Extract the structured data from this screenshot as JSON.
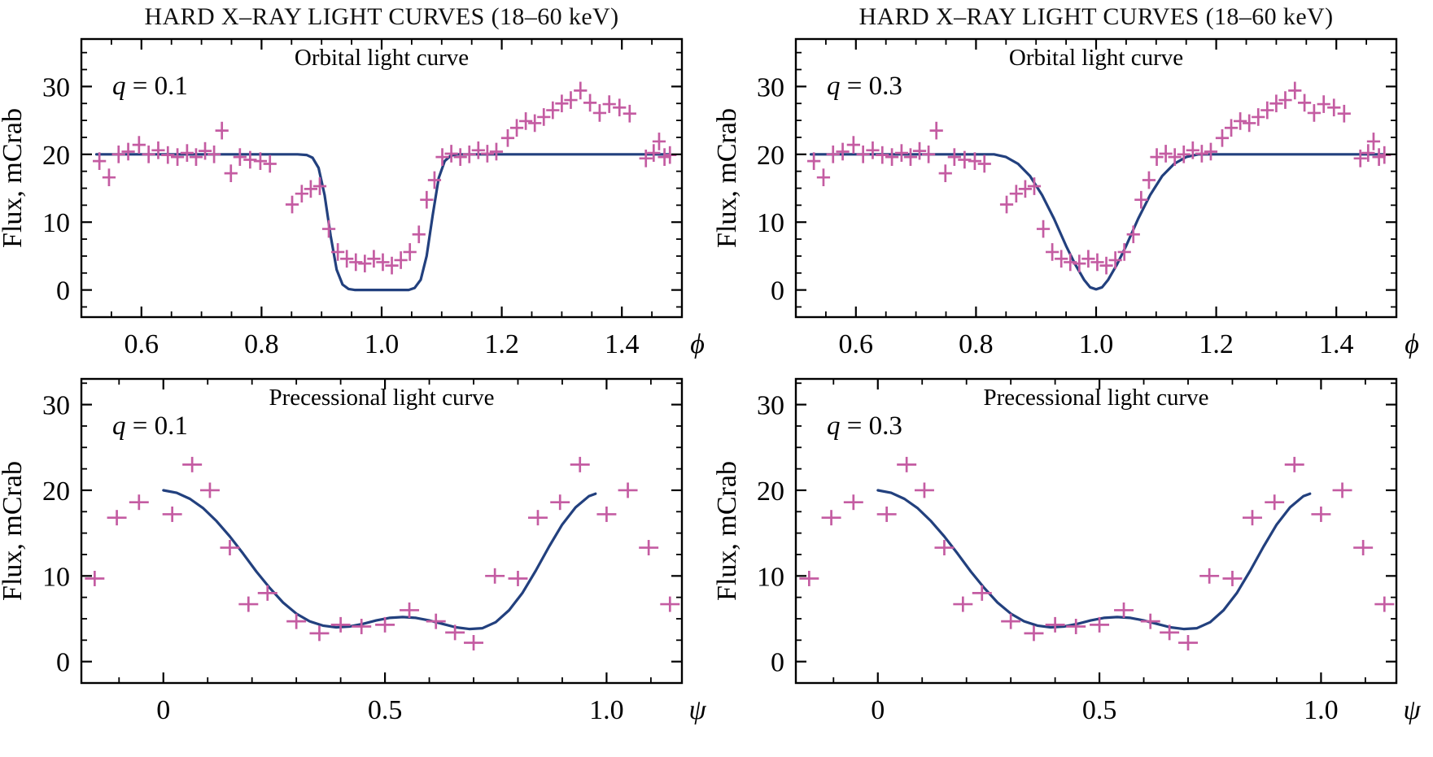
{
  "columns": [
    {
      "title": "HARD X–RAY LIGHT CURVES (18–60 keV)"
    },
    {
      "title": "HARD X–RAY LIGHT CURVES (18–60 keV)"
    }
  ],
  "colors": {
    "data": "#c45ca2",
    "model": "#22407e",
    "q_label": "#1f54a6",
    "axis": "#000000",
    "background": "#ffffff"
  },
  "chart_data": {
    "type": "scatter+line",
    "shared_series": {
      "orbital_points": [
        [
          0.53,
          19.0
        ],
        [
          0.546,
          16.6
        ],
        [
          0.562,
          20.0
        ],
        [
          0.578,
          20.4
        ],
        [
          0.596,
          21.4
        ],
        [
          0.612,
          20.0
        ],
        [
          0.628,
          20.6
        ],
        [
          0.644,
          19.9
        ],
        [
          0.66,
          19.6
        ],
        [
          0.676,
          20.2
        ],
        [
          0.691,
          19.6
        ],
        [
          0.706,
          20.5
        ],
        [
          0.721,
          20.0
        ],
        [
          0.734,
          23.5
        ],
        [
          0.749,
          17.2
        ],
        [
          0.764,
          19.6
        ],
        [
          0.781,
          19.2
        ],
        [
          0.798,
          19.0
        ],
        [
          0.814,
          18.6
        ],
        [
          0.851,
          12.6
        ],
        [
          0.867,
          14.2
        ],
        [
          0.882,
          14.9
        ],
        [
          0.897,
          15.3
        ],
        [
          0.912,
          9.0
        ],
        [
          0.927,
          5.6
        ],
        [
          0.942,
          4.6
        ],
        [
          0.957,
          4.1
        ],
        [
          0.972,
          3.9
        ],
        [
          0.987,
          4.6
        ],
        [
          1.002,
          4.1
        ],
        [
          1.017,
          3.6
        ],
        [
          1.032,
          4.4
        ],
        [
          1.047,
          5.6
        ],
        [
          1.062,
          8.2
        ],
        [
          1.075,
          13.3
        ],
        [
          1.088,
          16.2
        ],
        [
          1.101,
          19.6
        ],
        [
          1.116,
          20.1
        ],
        [
          1.131,
          19.6
        ],
        [
          1.146,
          20.0
        ],
        [
          1.161,
          20.6
        ],
        [
          1.176,
          20.1
        ],
        [
          1.191,
          20.4
        ],
        [
          1.21,
          22.4
        ],
        [
          1.225,
          23.9
        ],
        [
          1.24,
          24.9
        ],
        [
          1.255,
          24.6
        ],
        [
          1.27,
          25.5
        ],
        [
          1.285,
          26.5
        ],
        [
          1.3,
          27.5
        ],
        [
          1.315,
          28.0
        ],
        [
          1.331,
          29.4
        ],
        [
          1.347,
          27.6
        ],
        [
          1.363,
          26.1
        ],
        [
          1.379,
          27.4
        ],
        [
          1.396,
          26.9
        ],
        [
          1.413,
          26.0
        ],
        [
          1.44,
          19.4
        ],
        [
          1.453,
          20.2
        ],
        [
          1.462,
          21.9
        ],
        [
          1.471,
          19.6
        ],
        [
          1.48,
          19.9
        ]
      ],
      "precessional_points": [
        [
          -0.155,
          9.7
        ],
        [
          -0.105,
          16.8
        ],
        [
          -0.055,
          18.6
        ],
        [
          0.02,
          17.2
        ],
        [
          0.065,
          23.0
        ],
        [
          0.105,
          20.0
        ],
        [
          0.15,
          13.3
        ],
        [
          0.192,
          6.7
        ],
        [
          0.235,
          8.0
        ],
        [
          0.3,
          4.7
        ],
        [
          0.352,
          3.3
        ],
        [
          0.4,
          4.3
        ],
        [
          0.447,
          4.1
        ],
        [
          0.5,
          4.3
        ],
        [
          0.555,
          6.0
        ],
        [
          0.615,
          4.7
        ],
        [
          0.658,
          3.4
        ],
        [
          0.7,
          2.2
        ],
        [
          0.748,
          10.0
        ],
        [
          0.8,
          9.7
        ],
        [
          0.845,
          16.8
        ],
        [
          0.895,
          18.6
        ],
        [
          0.94,
          23.0
        ],
        [
          1.0,
          17.2
        ],
        [
          1.048,
          20.0
        ],
        [
          1.095,
          13.3
        ],
        [
          1.143,
          6.7
        ]
      ],
      "orbital_model_q01": [
        [
          0.525,
          20
        ],
        [
          0.86,
          20
        ],
        [
          0.875,
          19.9
        ],
        [
          0.885,
          19.5
        ],
        [
          0.895,
          18.0
        ],
        [
          0.905,
          14.0
        ],
        [
          0.915,
          8.0
        ],
        [
          0.925,
          3.0
        ],
        [
          0.935,
          0.8
        ],
        [
          0.945,
          0.15
        ],
        [
          0.955,
          0
        ],
        [
          1.045,
          0
        ],
        [
          1.055,
          0.3
        ],
        [
          1.065,
          1.5
        ],
        [
          1.075,
          5.0
        ],
        [
          1.085,
          11.0
        ],
        [
          1.095,
          16.5
        ],
        [
          1.105,
          19.0
        ],
        [
          1.115,
          19.8
        ],
        [
          1.125,
          20
        ],
        [
          1.478,
          20
        ]
      ],
      "orbital_model_q03": [
        [
          0.525,
          20
        ],
        [
          0.83,
          20
        ],
        [
          0.85,
          19.6
        ],
        [
          0.87,
          18.6
        ],
        [
          0.89,
          16.8
        ],
        [
          0.91,
          14.0
        ],
        [
          0.93,
          10.5
        ],
        [
          0.95,
          6.5
        ],
        [
          0.965,
          3.8
        ],
        [
          0.98,
          1.5
        ],
        [
          0.99,
          0.4
        ],
        [
          1.0,
          0.1
        ],
        [
          1.01,
          0.4
        ],
        [
          1.02,
          1.5
        ],
        [
          1.035,
          3.8
        ],
        [
          1.05,
          6.5
        ],
        [
          1.07,
          10.5
        ],
        [
          1.09,
          14.0
        ],
        [
          1.11,
          16.8
        ],
        [
          1.13,
          18.6
        ],
        [
          1.15,
          19.6
        ],
        [
          1.17,
          20
        ],
        [
          1.478,
          20
        ]
      ],
      "precessional_model": [
        [
          0.0,
          20.0
        ],
        [
          0.03,
          19.7
        ],
        [
          0.06,
          19.0
        ],
        [
          0.09,
          17.9
        ],
        [
          0.12,
          16.4
        ],
        [
          0.15,
          14.6
        ],
        [
          0.18,
          12.6
        ],
        [
          0.21,
          10.5
        ],
        [
          0.24,
          8.6
        ],
        [
          0.27,
          6.9
        ],
        [
          0.3,
          5.6
        ],
        [
          0.33,
          4.7
        ],
        [
          0.36,
          4.2
        ],
        [
          0.39,
          4.0
        ],
        [
          0.42,
          4.1
        ],
        [
          0.45,
          4.4
        ],
        [
          0.48,
          4.8
        ],
        [
          0.51,
          5.1
        ],
        [
          0.54,
          5.2
        ],
        [
          0.57,
          5.1
        ],
        [
          0.6,
          4.8
        ],
        [
          0.63,
          4.4
        ],
        [
          0.66,
          4.0
        ],
        [
          0.69,
          3.8
        ],
        [
          0.72,
          3.9
        ],
        [
          0.75,
          4.6
        ],
        [
          0.78,
          6.0
        ],
        [
          0.81,
          8.0
        ],
        [
          0.84,
          10.6
        ],
        [
          0.87,
          13.4
        ],
        [
          0.9,
          16.0
        ],
        [
          0.93,
          18.0
        ],
        [
          0.96,
          19.3
        ],
        [
          0.975,
          19.6
        ]
      ]
    },
    "panels": [
      {
        "title": "Orbital light curve",
        "q_label": "q = 0.1",
        "ylabel": "Flux, mCrab",
        "x_symbol": "ϕ",
        "xlim": [
          0.5,
          1.5
        ],
        "ylim": [
          -4,
          37
        ],
        "xticks": [
          0.6,
          0.8,
          1.0,
          1.2,
          1.4
        ],
        "xtick_labels": [
          "0.6",
          "0.8",
          "1.0",
          "1.2",
          "1.4"
        ],
        "yticks": [
          0,
          10,
          20,
          30
        ],
        "ytick_labels": [
          "0",
          "10",
          "20",
          "30"
        ],
        "xminor": 0.05,
        "yminor": 2.5,
        "points_ref": "orbital_points",
        "model_ref": "orbital_model_q01",
        "xerr": 0.011,
        "yerr": 1.3
      },
      {
        "title": "Precessional light curve",
        "q_label": "q = 0.1",
        "ylabel": "Flux, mCrab",
        "x_symbol": "ψ",
        "xlim": [
          -0.185,
          1.17
        ],
        "ylim": [
          -2.5,
          33
        ],
        "xticks": [
          0,
          0.5,
          1.0
        ],
        "xtick_labels": [
          "0",
          "0.5",
          "1.0"
        ],
        "yticks": [
          0,
          10,
          20,
          30
        ],
        "ytick_labels": [
          "0",
          "10",
          "20",
          "30"
        ],
        "xminor": 0.1,
        "yminor": 2.5,
        "points_ref": "precessional_points",
        "model_ref": "precessional_model",
        "xerr": 0.022,
        "yerr": 0.9
      },
      {
        "title": "Orbital light curve",
        "q_label": "q = 0.3",
        "ylabel": "Flux, mCrab",
        "x_symbol": "ϕ",
        "xlim": [
          0.5,
          1.5
        ],
        "ylim": [
          -4,
          37
        ],
        "xticks": [
          0.6,
          0.8,
          1.0,
          1.2,
          1.4
        ],
        "xtick_labels": [
          "0.6",
          "0.8",
          "1.0",
          "1.2",
          "1.4"
        ],
        "yticks": [
          0,
          10,
          20,
          30
        ],
        "ytick_labels": [
          "0",
          "10",
          "20",
          "30"
        ],
        "xminor": 0.05,
        "yminor": 2.5,
        "points_ref": "orbital_points",
        "model_ref": "orbital_model_q03",
        "xerr": 0.011,
        "yerr": 1.3
      },
      {
        "title": "Precessional light curve",
        "q_label": "q = 0.3",
        "ylabel": "Flux, mCrab",
        "x_symbol": "ψ",
        "xlim": [
          -0.185,
          1.17
        ],
        "ylim": [
          -2.5,
          33
        ],
        "xticks": [
          0,
          0.5,
          1.0
        ],
        "xtick_labels": [
          "0",
          "0.5",
          "1.0"
        ],
        "yticks": [
          0,
          10,
          20,
          30
        ],
        "ytick_labels": [
          "0",
          "10",
          "20",
          "30"
        ],
        "xminor": 0.1,
        "yminor": 2.5,
        "points_ref": "precessional_points",
        "model_ref": "precessional_model",
        "xerr": 0.022,
        "yerr": 0.9
      }
    ]
  }
}
